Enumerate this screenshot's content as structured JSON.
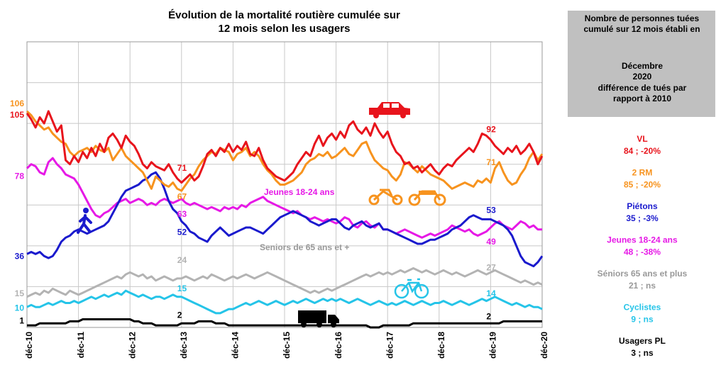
{
  "chart_data": {
    "type": "line",
    "title": "Évolution de la mortalité routière cumulée sur 12 mois selon les usagers",
    "categories": [
      "déc-10",
      null,
      null,
      null,
      null,
      null,
      null,
      null,
      null,
      null,
      null,
      null,
      "déc-11",
      null,
      null,
      null,
      null,
      null,
      null,
      null,
      null,
      null,
      null,
      null,
      "déc-12",
      null,
      null,
      null,
      null,
      null,
      null,
      null,
      null,
      null,
      null,
      null,
      "déc-13",
      null,
      null,
      null,
      null,
      null,
      null,
      null,
      null,
      null,
      null,
      null,
      "déc-14",
      null,
      null,
      null,
      null,
      null,
      null,
      null,
      null,
      null,
      null,
      null,
      "déc-15",
      null,
      null,
      null,
      null,
      null,
      null,
      null,
      null,
      null,
      null,
      null,
      "déc-16",
      null,
      null,
      null,
      null,
      null,
      null,
      null,
      null,
      null,
      null,
      null,
      "déc-17",
      null,
      null,
      null,
      null,
      null,
      null,
      null,
      null,
      null,
      null,
      null,
      "déc-18",
      null,
      null,
      null,
      null,
      null,
      null,
      null,
      null,
      null,
      null,
      null,
      "déc-19",
      null,
      null,
      null,
      null,
      null,
      null,
      null,
      null,
      null,
      null,
      null,
      "déc-20"
    ],
    "ylim": [
      0,
      140
    ],
    "yticks": [
      0,
      20,
      40,
      60,
      80,
      100,
      120,
      140
    ],
    "grid": true,
    "label_points": [
      0,
      36,
      108
    ],
    "series": [
      {
        "name": "VL",
        "note": "84 ; -20%",
        "color": "#e8141c",
        "values": [
          105,
          102,
          98,
          103,
          100,
          106,
          101,
          96,
          99,
          82,
          80,
          84,
          81,
          86,
          83,
          88,
          84,
          90,
          86,
          93,
          95,
          92,
          88,
          94,
          91,
          89,
          85,
          80,
          78,
          81,
          79,
          78,
          77,
          80,
          76,
          73,
          71,
          73,
          75,
          72,
          74,
          79,
          85,
          87,
          84,
          88,
          86,
          90,
          86,
          89,
          87,
          91,
          85,
          84,
          88,
          82,
          78,
          76,
          74,
          73,
          72,
          74,
          76,
          80,
          83,
          86,
          84,
          90,
          94,
          89,
          93,
          95,
          92,
          96,
          93,
          99,
          101,
          97,
          95,
          98,
          94,
          100,
          96,
          93,
          96,
          90,
          86,
          84,
          80,
          81,
          78,
          79,
          76,
          78,
          80,
          77,
          75,
          78,
          80,
          79,
          82,
          84,
          86,
          88,
          86,
          90,
          95,
          94,
          92,
          89,
          87,
          85,
          88,
          86,
          89,
          85,
          87,
          90,
          86,
          80,
          84
        ]
      },
      {
        "name": "2 RM",
        "note": "85 ; -20%",
        "color": "#f7931e",
        "values": [
          106,
          104,
          101,
          99,
          97,
          98,
          95,
          93,
          91,
          90,
          86,
          84,
          86,
          87,
          88,
          86,
          89,
          87,
          86,
          88,
          82,
          85,
          88,
          84,
          82,
          80,
          78,
          76,
          72,
          68,
          74,
          72,
          70,
          69,
          71,
          68,
          67,
          70,
          73,
          75,
          79,
          82,
          84,
          86,
          85,
          88,
          87,
          86,
          82,
          85,
          86,
          88,
          84,
          86,
          84,
          80,
          77,
          75,
          72,
          70,
          70,
          71,
          72,
          74,
          76,
          80,
          82,
          83,
          85,
          84,
          86,
          83,
          84,
          86,
          88,
          85,
          84,
          87,
          90,
          91,
          86,
          82,
          80,
          78,
          77,
          74,
          72,
          75,
          81,
          80,
          78,
          76,
          79,
          77,
          75,
          74,
          73,
          72,
          70,
          68,
          69,
          70,
          71,
          70,
          69,
          72,
          71,
          73,
          71,
          78,
          81,
          76,
          72,
          70,
          71,
          75,
          78,
          83,
          86,
          82,
          85
        ]
      },
      {
        "name": "Piétons",
        "note": "35 ; -3%",
        "color": "#1a1acd",
        "values": [
          36,
          37,
          36,
          37,
          35,
          34,
          35,
          38,
          42,
          44,
          45,
          47,
          48,
          47,
          46,
          47,
          48,
          49,
          50,
          52,
          56,
          60,
          64,
          67,
          68,
          69,
          70,
          72,
          73,
          75,
          76,
          73,
          68,
          62,
          58,
          56,
          52,
          50,
          47,
          46,
          44,
          43,
          42,
          45,
          47,
          49,
          47,
          45,
          46,
          47,
          48,
          49,
          49,
          48,
          47,
          46,
          48,
          50,
          52,
          54,
          55,
          56,
          57,
          56,
          55,
          54,
          52,
          51,
          50,
          51,
          52,
          53,
          53,
          51,
          49,
          48,
          50,
          51,
          52,
          50,
          49,
          50,
          51,
          48,
          48,
          47,
          46,
          45,
          44,
          43,
          42,
          41,
          41,
          42,
          43,
          43,
          44,
          45,
          46,
          48,
          49,
          50,
          52,
          54,
          55,
          54,
          53,
          53,
          53,
          52,
          51,
          50,
          48,
          45,
          40,
          35,
          32,
          31,
          30,
          32,
          35
        ]
      },
      {
        "name": "Jeunes 18-24 ans",
        "note": "48 ; -38%",
        "color": "#e619e6",
        "values": [
          78,
          80,
          79,
          76,
          75,
          81,
          83,
          80,
          78,
          75,
          74,
          73,
          70,
          66,
          62,
          58,
          55,
          54,
          56,
          57,
          59,
          61,
          62,
          63,
          61,
          62,
          63,
          62,
          60,
          61,
          60,
          62,
          63,
          62,
          61,
          62,
          63,
          61,
          60,
          61,
          60,
          59,
          58,
          59,
          58,
          57,
          59,
          58,
          59,
          58,
          60,
          59,
          61,
          62,
          63,
          64,
          62,
          61,
          60,
          59,
          58,
          57,
          56,
          57,
          55,
          54,
          53,
          54,
          53,
          52,
          53,
          52,
          51,
          52,
          54,
          53,
          50,
          49,
          51,
          52,
          50,
          49,
          51,
          48,
          48,
          47,
          46,
          47,
          48,
          47,
          46,
          45,
          44,
          45,
          46,
          45,
          46,
          47,
          48,
          50,
          49,
          48,
          47,
          48,
          46,
          45,
          46,
          47,
          49,
          51,
          52,
          50,
          49,
          48,
          50,
          52,
          51,
          49,
          50,
          48,
          48
        ]
      },
      {
        "name": "Séniors 65 ans et plus",
        "note": "21 ; ns",
        "color": "#b3b3b3",
        "legend_color": "#999999",
        "values": [
          15,
          16,
          17,
          16,
          18,
          17,
          19,
          18,
          17,
          16,
          18,
          17,
          16,
          17,
          18,
          19,
          20,
          21,
          22,
          23,
          24,
          25,
          24,
          26,
          27,
          26,
          25,
          26,
          24,
          25,
          23,
          24,
          25,
          24,
          23,
          24,
          24,
          25,
          24,
          23,
          24,
          25,
          24,
          26,
          25,
          24,
          23,
          24,
          25,
          24,
          25,
          26,
          25,
          24,
          25,
          26,
          27,
          26,
          25,
          24,
          23,
          22,
          21,
          20,
          19,
          18,
          17,
          18,
          17,
          18,
          19,
          18,
          19,
          20,
          21,
          22,
          23,
          24,
          25,
          26,
          25,
          26,
          27,
          26,
          27,
          26,
          27,
          28,
          27,
          28,
          29,
          28,
          27,
          28,
          27,
          26,
          27,
          28,
          27,
          26,
          27,
          26,
          25,
          26,
          27,
          28,
          27,
          26,
          27,
          28,
          27,
          26,
          25,
          24,
          23,
          22,
          23,
          22,
          21,
          22,
          21
        ]
      },
      {
        "name": "Cyclistes",
        "note": "9 ; ns",
        "color": "#25c4e8",
        "values": [
          10,
          11,
          10,
          10,
          11,
          12,
          11,
          12,
          13,
          12,
          12,
          13,
          12,
          13,
          14,
          15,
          14,
          15,
          16,
          15,
          16,
          17,
          16,
          18,
          17,
          16,
          15,
          16,
          15,
          14,
          15,
          15,
          14,
          15,
          16,
          15,
          15,
          14,
          13,
          12,
          11,
          10,
          9,
          8,
          7,
          7,
          8,
          9,
          9,
          10,
          11,
          12,
          11,
          12,
          13,
          12,
          11,
          12,
          13,
          12,
          11,
          12,
          13,
          12,
          13,
          14,
          13,
          12,
          13,
          14,
          13,
          14,
          13,
          14,
          13,
          12,
          13,
          14,
          13,
          12,
          11,
          12,
          13,
          12,
          11,
          12,
          11,
          12,
          13,
          12,
          11,
          12,
          13,
          12,
          11,
          12,
          12,
          13,
          12,
          11,
          12,
          13,
          12,
          11,
          12,
          13,
          14,
          13,
          14,
          15,
          14,
          13,
          12,
          11,
          12,
          11,
          10,
          11,
          10,
          10,
          9
        ]
      },
      {
        "name": "Usagers PL",
        "note": "3 ; ns",
        "color": "#000000",
        "values": [
          1,
          1,
          1,
          2,
          2,
          2,
          2,
          2,
          2,
          2,
          3,
          3,
          3,
          4,
          4,
          4,
          4,
          4,
          4,
          4,
          4,
          4,
          4,
          4,
          4,
          3,
          3,
          2,
          2,
          2,
          1,
          1,
          1,
          1,
          1,
          1,
          2,
          2,
          2,
          2,
          3,
          3,
          3,
          3,
          2,
          2,
          2,
          1,
          1,
          1,
          1,
          1,
          1,
          1,
          1,
          1,
          1,
          1,
          1,
          1,
          1,
          1,
          1,
          1,
          1,
          1,
          1,
          1,
          1,
          1,
          1,
          1,
          1,
          1,
          1,
          1,
          1,
          1,
          1,
          1,
          0,
          0,
          0,
          1,
          1,
          1,
          1,
          1,
          1,
          1,
          2,
          2,
          2,
          2,
          2,
          2,
          2,
          2,
          2,
          2,
          2,
          2,
          2,
          2,
          2,
          2,
          2,
          2,
          2,
          2,
          2,
          3,
          3,
          3,
          3,
          3,
          3,
          3,
          3,
          3,
          3
        ]
      }
    ],
    "annotations": [
      {
        "text": "Jeunes 18-24 ans",
        "color": "#e619e6"
      },
      {
        "text": "Seniors de 65 ans et +",
        "color": "#999999"
      }
    ],
    "panel": {
      "heading": "Nombre de personnes tuées cumulé sur 12 mois établi en",
      "period": "Décembre 2020",
      "subheading": "différence de tués par rapport à 2010"
    }
  }
}
